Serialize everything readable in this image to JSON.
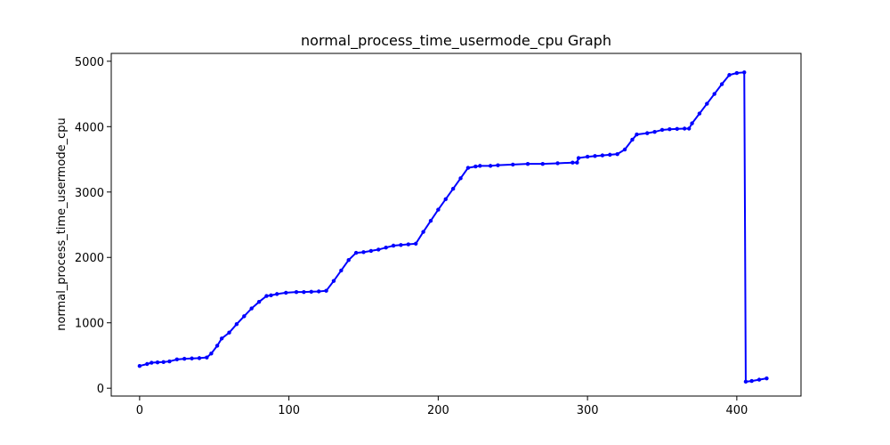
{
  "chart_data": {
    "type": "line",
    "title": "normal_process_time_usermode_cpu Graph",
    "xlabel": "",
    "ylabel": "normal_process_time_usermode_cpu",
    "xlim": [
      -19,
      443
    ],
    "ylim": [
      -120,
      5120
    ],
    "x_ticks": [
      0,
      100,
      200,
      300,
      400
    ],
    "y_ticks": [
      0,
      1000,
      2000,
      3000,
      4000,
      5000
    ],
    "grid": false,
    "color": "#0000ff",
    "series": [
      {
        "x": [
          0,
          5,
          8,
          12,
          16,
          20,
          25,
          30,
          35,
          40,
          45,
          48,
          52,
          55,
          60,
          65,
          70,
          75,
          80,
          85,
          88,
          92,
          98,
          105,
          110,
          115,
          120,
          125,
          130,
          135,
          140,
          145,
          150,
          155,
          160,
          165,
          170,
          175,
          180,
          185,
          190,
          195,
          200,
          205,
          210,
          215,
          220,
          225,
          228,
          235,
          240,
          250,
          260,
          270,
          280,
          290,
          293,
          294,
          300,
          305,
          310,
          315,
          320,
          325,
          330,
          333,
          340,
          345,
          350,
          355,
          360,
          365,
          368,
          370,
          375,
          380,
          385,
          390,
          395,
          400,
          405,
          406,
          410,
          415,
          420
        ],
        "y": [
          340,
          370,
          390,
          395,
          400,
          410,
          440,
          450,
          455,
          460,
          470,
          530,
          650,
          760,
          850,
          980,
          1100,
          1220,
          1320,
          1410,
          1420,
          1440,
          1460,
          1470,
          1470,
          1475,
          1480,
          1490,
          1640,
          1800,
          1960,
          2070,
          2080,
          2100,
          2120,
          2150,
          2180,
          2190,
          2200,
          2210,
          2390,
          2560,
          2730,
          2890,
          3050,
          3210,
          3370,
          3390,
          3400,
          3400,
          3410,
          3420,
          3430,
          3430,
          3440,
          3450,
          3450,
          3520,
          3540,
          3550,
          3560,
          3570,
          3580,
          3650,
          3800,
          3880,
          3900,
          3920,
          3950,
          3960,
          3965,
          3970,
          3970,
          4050,
          4200,
          4350,
          4500,
          4650,
          4790,
          4820,
          4830,
          100,
          110,
          130,
          150
        ]
      }
    ]
  }
}
